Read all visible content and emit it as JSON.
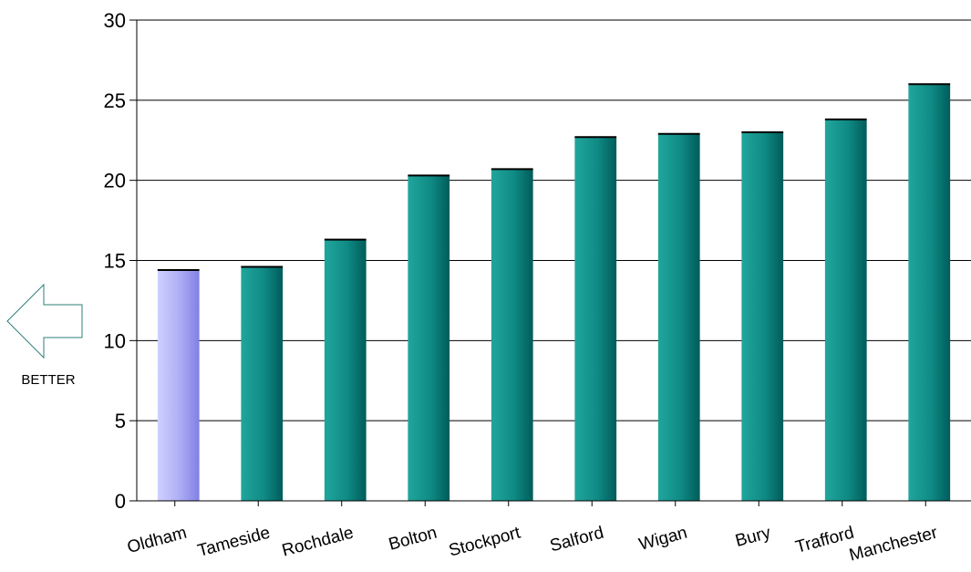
{
  "chart_data": {
    "type": "bar",
    "categories": [
      "Oldham",
      "Tameside",
      "Rochdale",
      "Bolton",
      "Stockport",
      "Salford",
      "Wigan",
      "Bury",
      "Trafford",
      "Manchester"
    ],
    "values": [
      14.4,
      14.6,
      16.3,
      20.3,
      20.7,
      22.7,
      22.9,
      23.0,
      23.8,
      26.0
    ],
    "highlight_index": 0,
    "ylim": [
      0,
      30
    ],
    "yticks": [
      0,
      5,
      10,
      15,
      20,
      25,
      30
    ],
    "grid": true,
    "title": "",
    "xlabel": "",
    "ylabel": ""
  },
  "annotation": {
    "label": "BETTER",
    "icon": "left-arrow-icon"
  },
  "colors": {
    "bar": "#0f8a84",
    "bar_highlight": "#a8a8f4",
    "grid": "#000000"
  }
}
